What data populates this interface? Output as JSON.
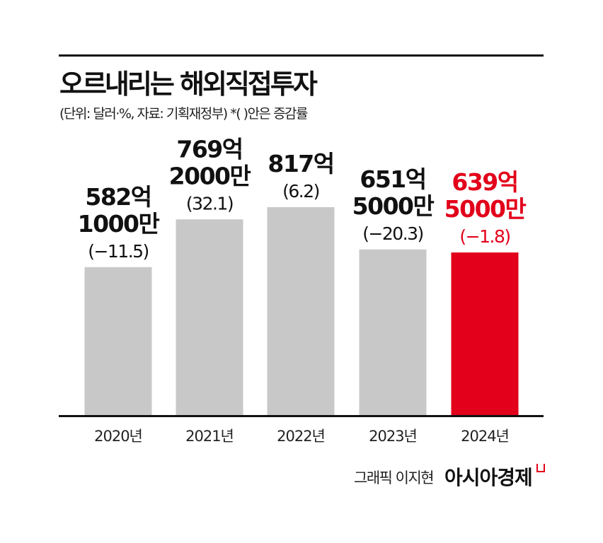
{
  "chart_data": {
    "type": "bar",
    "title": "오르내리는 해외직접투자",
    "subtitle": "(단위: 달러·%, 자료: 기획재정부)  *(  )안은 증감률",
    "categories": [
      "2020년",
      "2021년",
      "2022년",
      "2023년",
      "2024년"
    ],
    "values": [
      582.1,
      769.2,
      817,
      651.5,
      639.5
    ],
    "unit": "억 달러",
    "labels": [
      [
        "582억",
        "1000만",
        "(−11.5)"
      ],
      [
        "769억",
        "2000만",
        "(32.1)"
      ],
      [
        "817억",
        "(6.2)"
      ],
      [
        "651억",
        "5000만",
        "(−20.3)"
      ],
      [
        "639억",
        "5000만",
        "(−1.8)"
      ]
    ],
    "growth_rates": [
      -11.5,
      32.1,
      6.2,
      -20.3,
      -1.8
    ],
    "highlight_index": 4,
    "colors": {
      "bar": "#c8c8c8",
      "highlight": "#e2001a",
      "text": "#111111"
    }
  },
  "footer": {
    "credit": "그래픽 이지현",
    "brand": "아시아경제"
  }
}
